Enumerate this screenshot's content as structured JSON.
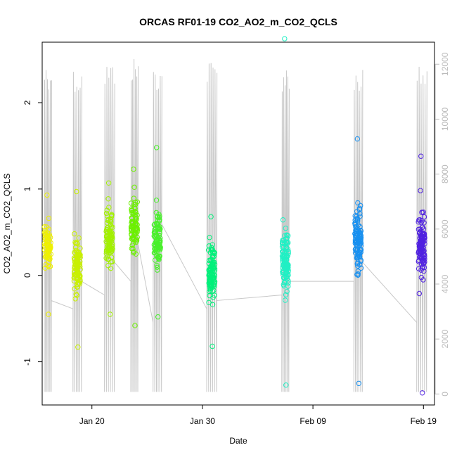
{
  "chart_data": {
    "type": "scatter",
    "title": "ORCAS RF01-19 CO2_AO2_m_CO2_QCLS",
    "xlabel": "Date",
    "ylabel": "CO2_AO2_m_CO2_QCLS",
    "x_is_date": true,
    "x_range": [
      "2016-01-15T12:00",
      "2016-02-20T00:00"
    ],
    "x_ticks": [
      {
        "date": "2016-01-20",
        "label": "Jan 20"
      },
      {
        "date": "2016-01-30",
        "label": "Jan 30"
      },
      {
        "date": "2016-02-09",
        "label": "Feb 09"
      },
      {
        "date": "2016-02-19",
        "label": "Feb 19"
      }
    ],
    "ylim": [
      -1.5,
      2.7
    ],
    "y_ticks": [
      -1,
      0,
      1,
      2
    ],
    "y_tick_labels": [
      "-1",
      "0",
      "1",
      "2"
    ],
    "y2_label": "",
    "y2lim": [
      -400,
      12800
    ],
    "y2_ticks": [
      0,
      2000,
      4000,
      6000,
      8000,
      10000,
      12000
    ],
    "y2_tick_labels": [
      "0",
      "2000",
      "4000",
      "6000",
      "8000",
      "10000",
      "12000"
    ],
    "y2_color": "#bbbbbb",
    "grid": false,
    "legend": "none",
    "flights": [
      {
        "date": "2016-01-16",
        "color": "#eef000",
        "median": 0.33,
        "spread": 0.22,
        "min": -0.45,
        "max": 0.93,
        "n": 70,
        "alt_max": 12100
      },
      {
        "date": "2016-01-18T16:00",
        "color": "#c8f000",
        "median": 0.1,
        "spread": 0.28,
        "min": -0.83,
        "max": 0.97,
        "n": 95,
        "alt_max": 11900
      },
      {
        "date": "2016-01-21T14:00",
        "color": "#a2f000",
        "median": 0.43,
        "spread": 0.28,
        "min": -0.45,
        "max": 1.07,
        "n": 100,
        "alt_max": 12100
      },
      {
        "date": "2016-01-23T20:00",
        "color": "#6cf000",
        "median": 0.55,
        "spread": 0.3,
        "min": -0.58,
        "max": 1.23,
        "n": 85,
        "alt_max": 12300
      },
      {
        "date": "2016-01-25T22:00",
        "color": "#48f02a",
        "median": 0.4,
        "spread": 0.3,
        "min": -0.48,
        "max": 1.48,
        "n": 95,
        "alt_max": 12000
      },
      {
        "date": "2016-01-30T20:00",
        "color": "#00f07a",
        "median": 0.05,
        "spread": 0.28,
        "min": -0.82,
        "max": 0.68,
        "n": 110,
        "alt_max": 12200
      },
      {
        "date": "2016-02-06T12:00",
        "color": "#20f0c4",
        "median": 0.18,
        "spread": 0.33,
        "min": -1.27,
        "max": 2.74,
        "n": 110,
        "alt_max": 12000
      },
      {
        "date": "2016-02-13T02:00",
        "color": "#1890f0",
        "median": 0.42,
        "spread": 0.33,
        "min": -1.25,
        "max": 1.58,
        "n": 120,
        "alt_max": 11900
      },
      {
        "date": "2016-02-18T20:00",
        "color": "#5022e0",
        "median": 0.35,
        "spread": 0.33,
        "min": -1.36,
        "max": 1.38,
        "n": 120,
        "alt_max": 12000
      }
    ]
  }
}
